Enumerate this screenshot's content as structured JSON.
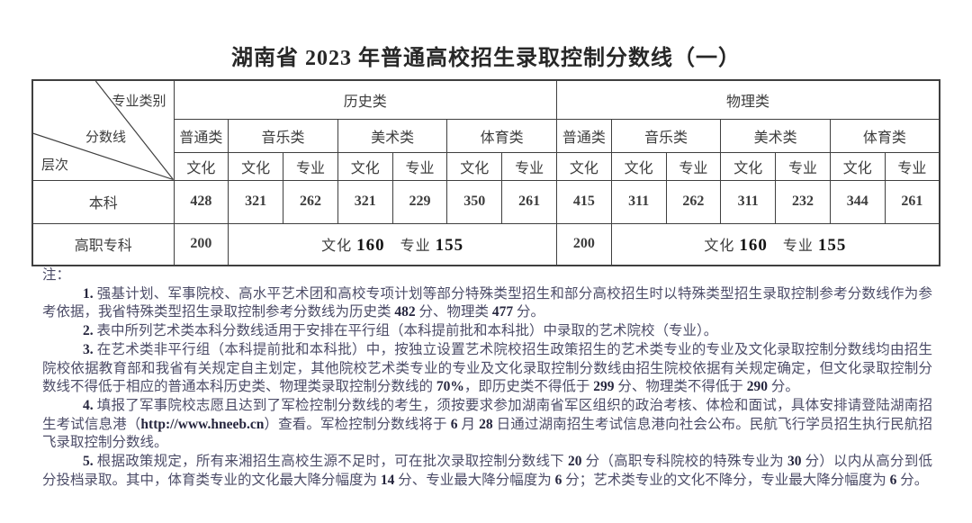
{
  "title": "湖南省 2023 年普通高校招生录取控制分数线（一）",
  "table": {
    "corner": {
      "top": "专业类别",
      "middle": "分数线",
      "bottom": "层次"
    },
    "groups": [
      "历史类",
      "物理类"
    ],
    "categories": [
      "普通类",
      "音乐类",
      "美术类",
      "体育类",
      "普通类",
      "音乐类",
      "美术类",
      "体育类"
    ],
    "leaf": [
      "文化",
      "文化",
      "专业",
      "文化",
      "专业",
      "文化",
      "专业",
      "文化",
      "文化",
      "专业",
      "文化",
      "专业",
      "文化",
      "专业"
    ],
    "benke": {
      "label": "本科",
      "values": [
        "428",
        "321",
        "262",
        "321",
        "229",
        "350",
        "261",
        "415",
        "311",
        "262",
        "311",
        "232",
        "344",
        "261"
      ]
    },
    "gaozhi": {
      "label": "高职专科",
      "hist_general": "200",
      "hist_merged": "文化 160　专业 155",
      "phys_general": "200",
      "phys_merged": "文化 160　专业 155"
    }
  },
  "notes": {
    "label": "注：",
    "items": [
      "1. 强基计划、军事院校、高水平艺术团和高校专项计划等部分特殊类型招生和部分高校招生时以特殊类型招生录取控制参考分数线作为参考依据，我省特殊类型招生录取控制参考分数线为历史类 482 分、物理类 477 分。",
      "2. 表中所列艺术类本科分数线适用于安排在平行组（本科提前批和本科批）中录取的艺术院校（专业）。",
      "3. 在艺术类非平行组（本科提前批和本科批）中，按独立设置艺术院校招生政策招生的艺术类专业的专业及文化录取控制分数线均由招生院校依据教育部和我省有关规定自主划定，其他院校艺术类专业的专业及文化录取控制分数线由招生院校依据有关规定确定，但文化录取控制分数线不得低于相应的普通本科历史类、物理类录取控制分数线的 70%，即历史类不得低于 299 分、物理类不得低于 290 分。",
      "4. 填报了军事院校志愿且达到了军检控制分数线的考生，须按要求参加湖南省军区组织的政治考核、体检和面试，具体安排请登陆湖南招生考试信息港（http://www.hneeb.cn）查看。军检控制分数线将于 6 月 28 日通过湖南招生考试信息港向社会公布。民航飞行学员招生执行民航招飞录取控制分数线。",
      "5. 根据政策规定，所有来湘招生高校生源不足时，可在批次录取控制分数线下 20 分（高职专科院校的特殊专业为 30 分）以内从高分到低分投档录取。其中，体育类专业的文化最大降分幅度为 14 分、专业最大降分幅度为 6 分；艺术类专业的文化不降分，专业最大降分幅度为 6 分。"
    ]
  }
}
